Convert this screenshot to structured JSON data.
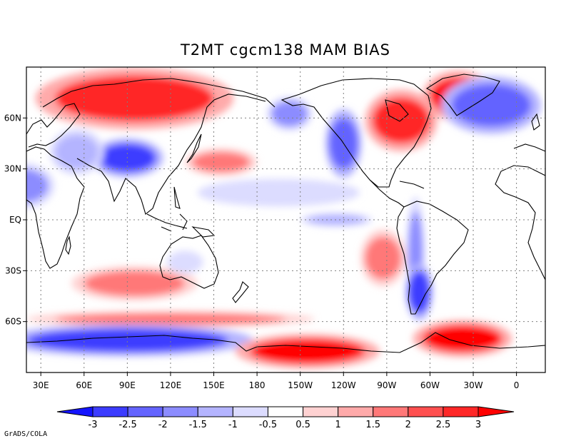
{
  "figure": {
    "title": "T2MT cgcm138 MAM  BIAS",
    "credit": "GrADS/COLA"
  },
  "map": {
    "projection": "latlon",
    "lon_range": [
      20,
      380
    ],
    "lat_range": [
      -90,
      90
    ],
    "grid": "dotted",
    "x_ticks": [
      {
        "lon": 30,
        "label": "30E"
      },
      {
        "lon": 60,
        "label": "60E"
      },
      {
        "lon": 90,
        "label": "90E"
      },
      {
        "lon": 120,
        "label": "120E"
      },
      {
        "lon": 150,
        "label": "150E"
      },
      {
        "lon": 180,
        "label": "180"
      },
      {
        "lon": 210,
        "label": "150W"
      },
      {
        "lon": 240,
        "label": "120W"
      },
      {
        "lon": 270,
        "label": "90W"
      },
      {
        "lon": 300,
        "label": "60W"
      },
      {
        "lon": 330,
        "label": "30W"
      },
      {
        "lon": 360,
        "label": "0"
      }
    ],
    "y_ticks": [
      {
        "lat": 60,
        "label": "60N"
      },
      {
        "lat": 30,
        "label": "30N"
      },
      {
        "lat": 0,
        "label": "EQ"
      },
      {
        "lat": -30,
        "label": "30S"
      },
      {
        "lat": -60,
        "label": "60S"
      }
    ]
  },
  "colorbar": {
    "levels": [
      "-3",
      "-2.5",
      "-2",
      "-1.5",
      "-1",
      "-0.5",
      "0.5",
      "1",
      "1.5",
      "2",
      "2.5",
      "3"
    ],
    "colors": [
      "#1414ff",
      "#3c3cff",
      "#6464ff",
      "#8c8cff",
      "#b4b4ff",
      "#dcdcff",
      "#ffffff",
      "#ffd2d2",
      "#ffaaaa",
      "#ff7878",
      "#ff5050",
      "#ff2828",
      "#ff0000"
    ]
  },
  "bias_regions": [
    {
      "name": "Arctic Siberia warm",
      "lon": [
        40,
        150
      ],
      "lat": [
        58,
        85
      ],
      "value": 2.5
    },
    {
      "name": "Greenland warm",
      "lon": [
        300,
        340
      ],
      "lat": [
        62,
        84
      ],
      "value": 3
    },
    {
      "name": "Eastern Canada warm",
      "lon": [
        260,
        300
      ],
      "lat": [
        45,
        72
      ],
      "value": 2.5
    },
    {
      "name": "Alaska cold",
      "lon": [
        190,
        215
      ],
      "lat": [
        55,
        70
      ],
      "value": -2
    },
    {
      "name": "Rocky Mountains cold",
      "lon": [
        230,
        250
      ],
      "lat": [
        30,
        60
      ],
      "value": -2.5
    },
    {
      "name": "Tibet cold",
      "lon": [
        70,
        110
      ],
      "lat": [
        28,
        45
      ],
      "value": -3
    },
    {
      "name": "Central Asia mixed",
      "lon": [
        40,
        70
      ],
      "lat": [
        30,
        50
      ],
      "value": -1.5
    },
    {
      "name": "North Pacific warm",
      "lon": [
        135,
        175
      ],
      "lat": [
        28,
        40
      ],
      "value": 1.5
    },
    {
      "name": "Subtropical N Pacific cool",
      "lon": [
        150,
        240
      ],
      "lat": [
        10,
        22
      ],
      "value": -1
    },
    {
      "name": "Equatorial E Pacific cold",
      "lon": [
        215,
        255
      ],
      "lat": [
        -3,
        3
      ],
      "value": -1.5
    },
    {
      "name": "North Africa cold",
      "lon": [
        0,
        35
      ],
      "lat": [
        10,
        30
      ],
      "value": -2
    },
    {
      "name": "Andes cold",
      "lon": [
        285,
        295
      ],
      "lat": [
        -45,
        5
      ],
      "value": -2
    },
    {
      "name": "Patagonia cold",
      "lon": [
        285,
        300
      ],
      "lat": [
        -55,
        -30
      ],
      "value": -3
    },
    {
      "name": "SE Pacific warm",
      "lon": [
        255,
        280
      ],
      "lat": [
        -35,
        -10
      ],
      "value": 1.5
    },
    {
      "name": "Southern Indian Ocean warm",
      "lon": [
        60,
        130
      ],
      "lat": [
        -45,
        -30
      ],
      "value": 1.5
    },
    {
      "name": "Australia cool",
      "lon": [
        120,
        140
      ],
      "lat": [
        -30,
        -20
      ],
      "value": -1
    },
    {
      "name": "Southern Ocean warm",
      "lon": [
        40,
        200
      ],
      "lat": [
        -62,
        -55
      ],
      "value": 1.5
    },
    {
      "name": "East Antarctica cold",
      "lon": [
        20,
        160
      ],
      "lat": [
        -78,
        -64
      ],
      "value": -3
    },
    {
      "name": "West Antarctica warm",
      "lon": [
        175,
        255
      ],
      "lat": [
        -85,
        -70
      ],
      "value": 3
    },
    {
      "name": "Weddell warm",
      "lon": [
        295,
        350
      ],
      "lat": [
        -78,
        -62
      ],
      "value": 3
    },
    {
      "name": "Labrador Sea cold",
      "lon": [
        315,
        370
      ],
      "lat": [
        55,
        80
      ],
      "value": -2.5
    }
  ]
}
